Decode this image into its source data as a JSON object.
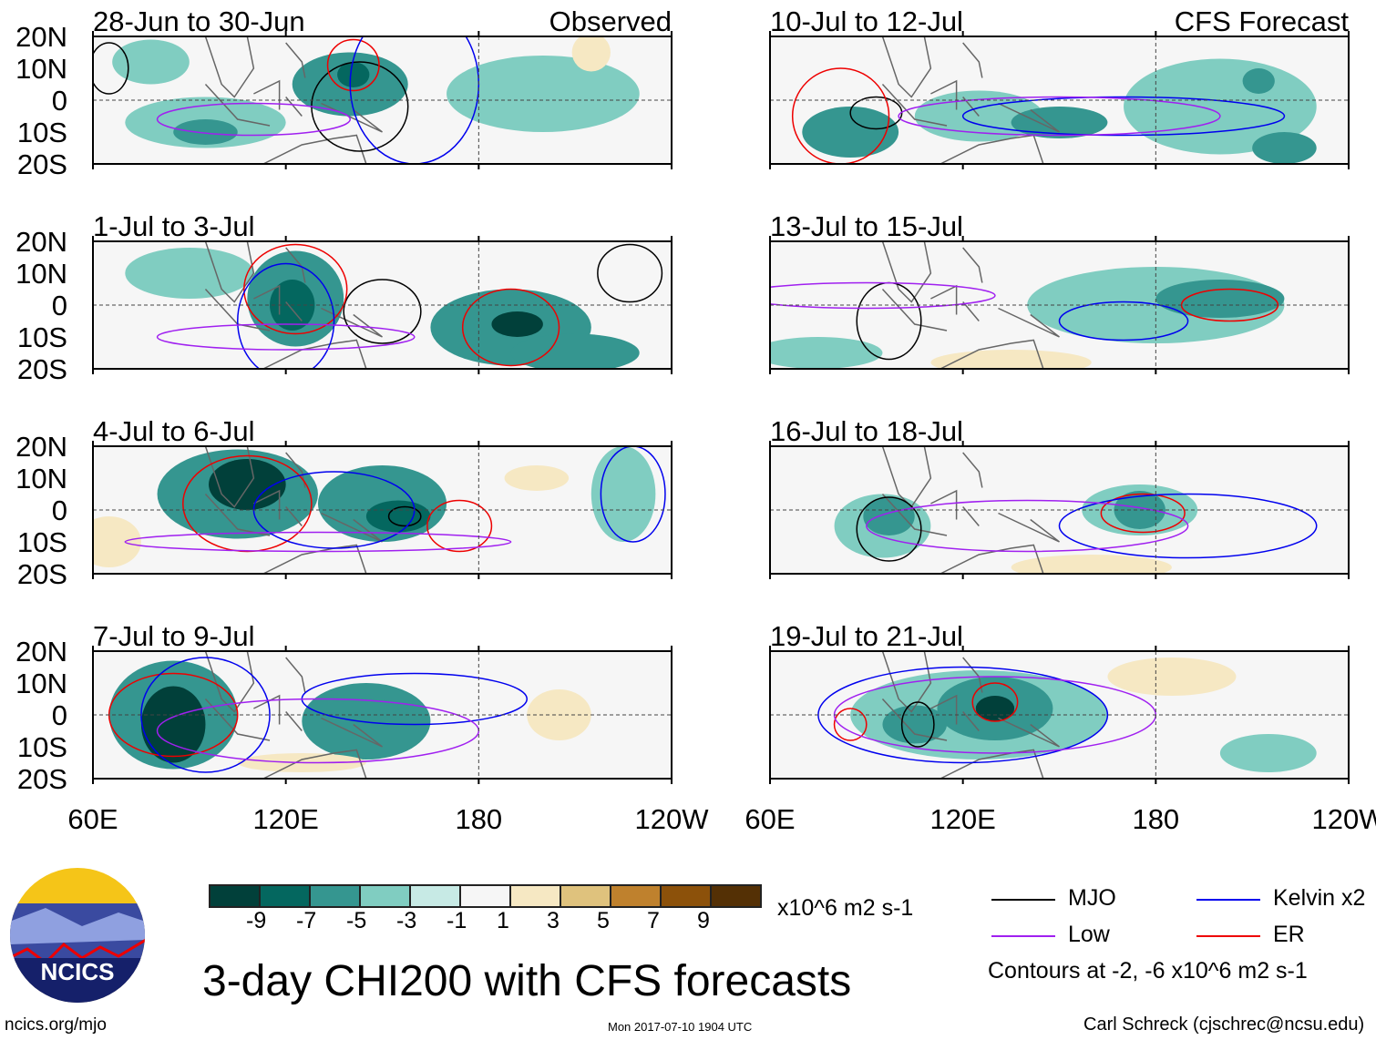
{
  "title": "3-day CHI200 with CFS forecasts",
  "units": "x10^6 m2 s-1",
  "contour_note": "Contours at -2, -6 x10^6 m2 s-1",
  "left_label": "Observed",
  "right_label": "CFS Forecast",
  "lat_ticks": [
    "20N",
    "10N",
    "0",
    "10S",
    "20S"
  ],
  "lon_ticks": [
    "60E",
    "120E",
    "180",
    "120W"
  ],
  "colorbar": {
    "ticks": [
      "-9",
      "-7",
      "-5",
      "-3",
      "-1",
      "1",
      "3",
      "5",
      "7",
      "9"
    ],
    "colors": [
      "#01403a",
      "#04675f",
      "#359690",
      "#80cdc1",
      "#c7eae5",
      "#f6f6f6",
      "#f6e8c3",
      "#dfc27d",
      "#bf812d",
      "#8c510a",
      "#543005"
    ]
  },
  "legend": [
    {
      "label": "MJO",
      "color": "#000000"
    },
    {
      "label": "Kelvin x2",
      "color": "#0000ee"
    },
    {
      "label": "Low",
      "color": "#a020f0"
    },
    {
      "label": "ER",
      "color": "#ee0000"
    }
  ],
  "logo_text": "NCICS",
  "site": "ncics.org/mjo",
  "timestamp": "Mon 2017-07-10 1904 UTC",
  "author": "Carl Schreck (cjschrec@ncsu.edu)",
  "panels": [
    {
      "title": "28-Jun to 30-Jun",
      "col": 0,
      "row": 0,
      "anom": [
        [
          78,
          12,
          12,
          7,
          -3
        ],
        [
          95,
          -7,
          25,
          8,
          -3
        ],
        [
          95,
          -10,
          10,
          4,
          -5
        ],
        [
          140,
          5,
          18,
          10,
          -5
        ],
        [
          141,
          8,
          5,
          4,
          -7
        ],
        [
          200,
          2,
          30,
          12,
          -3
        ],
        [
          215,
          15,
          6,
          6,
          3
        ]
      ],
      "cont": [
        [
          "MJO",
          65,
          10,
          6,
          8
        ],
        [
          "MJO",
          143,
          -2,
          15,
          14
        ],
        [
          "ER",
          141,
          11,
          8,
          8
        ],
        [
          "Kelvin",
          160,
          5,
          20,
          25
        ],
        [
          "Low",
          110,
          -6,
          30,
          5
        ]
      ]
    },
    {
      "title": "10-Jul to 12-Jul",
      "col": 1,
      "row": 0,
      "anom": [
        [
          85,
          -10,
          15,
          8,
          -5
        ],
        [
          125,
          -5,
          20,
          8,
          -3
        ],
        [
          150,
          -7,
          15,
          5,
          -5
        ],
        [
          200,
          -2,
          30,
          15,
          -3
        ],
        [
          212,
          6,
          5,
          4,
          -5
        ],
        [
          220,
          -15,
          10,
          5,
          -5
        ]
      ],
      "cont": [
        [
          "MJO",
          93,
          -4,
          8,
          5
        ],
        [
          "ER",
          82,
          -5,
          15,
          15
        ],
        [
          "Kelvin",
          170,
          -5,
          50,
          6
        ],
        [
          "Low",
          150,
          -5,
          50,
          6
        ]
      ]
    },
    {
      "title": "1-Jul to 3-Jul",
      "col": 0,
      "row": 1,
      "anom": [
        [
          90,
          10,
          20,
          8,
          -3
        ],
        [
          123,
          2,
          15,
          15,
          -5
        ],
        [
          122,
          0,
          7,
          8,
          -7
        ],
        [
          190,
          -7,
          25,
          12,
          -5
        ],
        [
          192,
          -6,
          8,
          4,
          -9
        ],
        [
          210,
          -15,
          20,
          6,
          -5
        ]
      ],
      "cont": [
        [
          "MJO",
          150,
          -2,
          12,
          10
        ],
        [
          "MJO",
          227,
          10,
          10,
          9
        ],
        [
          "ER",
          123,
          5,
          16,
          14
        ],
        [
          "ER",
          190,
          -7,
          15,
          12
        ],
        [
          "Kelvin",
          120,
          -5,
          15,
          18
        ],
        [
          "Low",
          120,
          -10,
          40,
          4
        ]
      ]
    },
    {
      "title": "13-Jul to 15-Jul",
      "col": 1,
      "row": 1,
      "anom": [
        [
          75,
          -15,
          20,
          5,
          -3
        ],
        [
          180,
          0,
          40,
          12,
          -3
        ],
        [
          200,
          2,
          20,
          6,
          -5
        ],
        [
          135,
          -18,
          25,
          4,
          1
        ]
      ],
      "cont": [
        [
          "MJO",
          97,
          -5,
          10,
          12
        ],
        [
          "ER",
          203,
          0,
          15,
          5
        ],
        [
          "Kelvin",
          170,
          -5,
          20,
          6
        ],
        [
          "Low",
          90,
          3,
          40,
          4
        ]
      ]
    },
    {
      "title": "4-Jul to 6-Jul",
      "col": 0,
      "row": 2,
      "anom": [
        [
          105,
          5,
          25,
          14,
          -5
        ],
        [
          108,
          8,
          12,
          8,
          -9
        ],
        [
          150,
          2,
          20,
          12,
          -5
        ],
        [
          155,
          -2,
          10,
          5,
          -7
        ],
        [
          65,
          -10,
          10,
          8,
          3
        ],
        [
          225,
          5,
          10,
          15,
          -3
        ],
        [
          198,
          10,
          10,
          4,
          3
        ]
      ],
      "cont": [
        [
          "MJO",
          157,
          -2,
          5,
          3
        ],
        [
          "ER",
          108,
          2,
          20,
          15
        ],
        [
          "ER",
          174,
          -5,
          10,
          8
        ],
        [
          "Kelvin",
          135,
          0,
          25,
          12
        ],
        [
          "Kelvin",
          228,
          5,
          10,
          15
        ],
        [
          "Low",
          130,
          -10,
          60,
          3
        ]
      ]
    },
    {
      "title": "16-Jul to 18-Jul",
      "col": 1,
      "row": 2,
      "anom": [
        [
          95,
          -5,
          15,
          10,
          -3
        ],
        [
          97,
          -2,
          8,
          6,
          -5
        ],
        [
          175,
          0,
          18,
          8,
          -3
        ],
        [
          175,
          0,
          8,
          6,
          -5
        ],
        [
          160,
          -18,
          25,
          4,
          1
        ]
      ],
      "cont": [
        [
          "MJO",
          97,
          -6,
          10,
          10
        ],
        [
          "ER",
          176,
          -1,
          13,
          6
        ],
        [
          "Kelvin",
          190,
          -5,
          40,
          10
        ],
        [
          "Low",
          140,
          -5,
          50,
          8
        ]
      ]
    },
    {
      "title": "7-Jul to 9-Jul",
      "col": 0,
      "row": 3,
      "anom": [
        [
          85,
          0,
          20,
          17,
          -5
        ],
        [
          85,
          -3,
          10,
          12,
          -9
        ],
        [
          145,
          -2,
          20,
          12,
          -5
        ],
        [
          205,
          0,
          10,
          8,
          3
        ],
        [
          125,
          -15,
          20,
          3,
          1
        ]
      ],
      "cont": [
        [
          "ER",
          85,
          0,
          20,
          13
        ],
        [
          "Kelvin",
          95,
          0,
          20,
          18
        ],
        [
          "Kelvin",
          160,
          5,
          35,
          8
        ],
        [
          "Low",
          130,
          -5,
          50,
          10
        ]
      ]
    },
    {
      "title": "19-Jul to 21-Jul",
      "col": 1,
      "row": 3,
      "anom": [
        [
          125,
          0,
          40,
          14,
          -3
        ],
        [
          130,
          2,
          18,
          10,
          -5
        ],
        [
          130,
          2,
          6,
          4,
          -9
        ],
        [
          105,
          -3,
          10,
          6,
          -5
        ],
        [
          185,
          12,
          20,
          6,
          1
        ],
        [
          215,
          -12,
          15,
          6,
          -3
        ]
      ],
      "cont": [
        [
          "MJO",
          106,
          -3,
          5,
          7
        ],
        [
          "ER",
          130,
          4,
          7,
          6
        ],
        [
          "ER",
          85,
          -3,
          5,
          5
        ],
        [
          "Kelvin",
          120,
          0,
          45,
          15
        ],
        [
          "Low",
          130,
          0,
          50,
          12
        ]
      ]
    }
  ]
}
